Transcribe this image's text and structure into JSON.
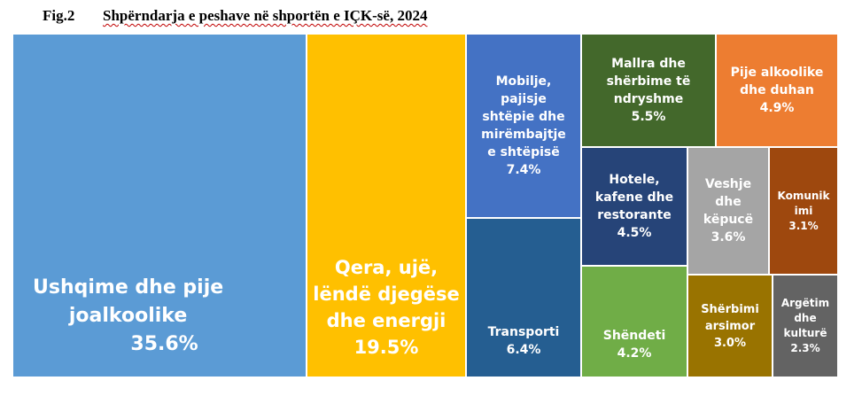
{
  "header": {
    "figure_number": "Fig.2",
    "title": "Shpërndarja e peshave në shportën e IÇK-së, 2024"
  },
  "colors": {
    "food": "#5b9bd5",
    "housing": "#ffc000",
    "furniture": "#4472c4",
    "transport": "#255e91",
    "misc": "#43682b",
    "alcohol": "#ed7d31",
    "hotels": "#264478",
    "clothing": "#a5a5a5",
    "communication": "#9e480e",
    "health": "#70ad47",
    "education": "#997300",
    "recreation": "#636363"
  },
  "chart_data": {
    "type": "treemap",
    "title": "Shpërndarja e peshave në shportën e IÇK-së, 2024",
    "items": [
      {
        "key": "food",
        "label": "Ushqime dhe pije joalkoolike",
        "value": 35.6,
        "value_label": "35.6%",
        "color": "#5b9bd5"
      },
      {
        "key": "housing",
        "label": "Qera, ujë, lëndë djegëse dhe energji",
        "value": 19.5,
        "value_label": "19.5%",
        "color": "#ffc000"
      },
      {
        "key": "furniture",
        "label": "Mobilje, pajisje shtëpie dhe mirëmbajtje e shtëpisë",
        "value": 7.4,
        "value_label": "7.4%",
        "color": "#4472c4"
      },
      {
        "key": "transport",
        "label": "Transporti",
        "value": 6.4,
        "value_label": "6.4%",
        "color": "#255e91"
      },
      {
        "key": "misc",
        "label": "Mallra dhe shërbime të ndryshme",
        "value": 5.5,
        "value_label": "5.5%",
        "color": "#43682b"
      },
      {
        "key": "alcohol",
        "label": "Pije alkoolike dhe duhan",
        "value": 4.9,
        "value_label": "4.9%",
        "color": "#ed7d31"
      },
      {
        "key": "hotels",
        "label": "Hotele, kafene dhe restorante",
        "value": 4.5,
        "value_label": "4.5%",
        "color": "#264478"
      },
      {
        "key": "clothing",
        "label": "Veshje dhe këpucë",
        "value": 3.6,
        "value_label": "3.6%",
        "color": "#a5a5a5"
      },
      {
        "key": "communication",
        "label": "Komunikimi",
        "value": 3.1,
        "value_label": "3.1%",
        "color": "#9e480e"
      },
      {
        "key": "health",
        "label": "Shëndeti",
        "value": 4.2,
        "value_label": "4.2%",
        "color": "#70ad47"
      },
      {
        "key": "education",
        "label": "Shërbimi arsimor",
        "value": 3.0,
        "value_label": "3.0%",
        "color": "#997300"
      },
      {
        "key": "recreation",
        "label": "Argëtim dhe kulturë",
        "value": 2.3,
        "value_label": "2.3%",
        "color": "#636363"
      }
    ]
  }
}
